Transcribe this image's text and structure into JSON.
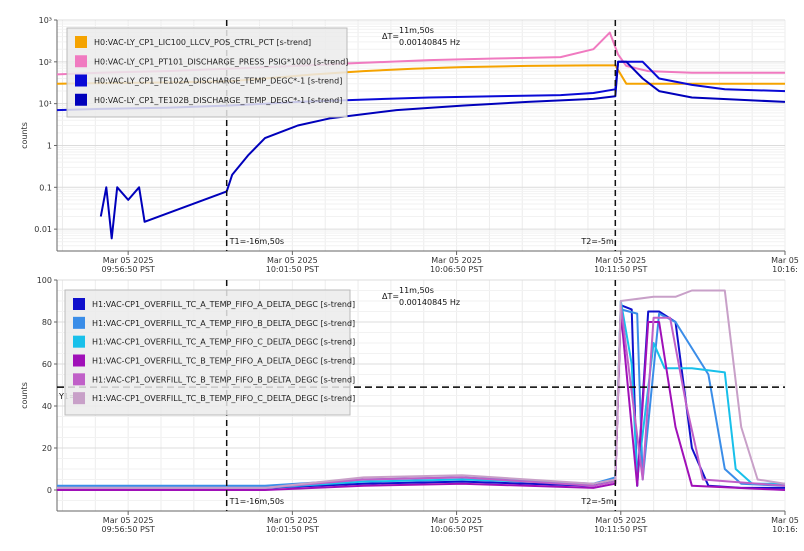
{
  "chart_data": [
    {
      "type": "line",
      "ylabel": "counts",
      "yscale": "log",
      "ylim": [
        0.003,
        1000
      ],
      "xlim": [
        "09:54:40",
        "10:16:50"
      ],
      "grid": true,
      "legend_position": "top-left",
      "yticks": [
        {
          "value": 0.01,
          "label": "0.01"
        },
        {
          "value": 0.1,
          "label": "0.1"
        },
        {
          "value": 1,
          "label": "1"
        },
        {
          "value": 10,
          "label": "10¹"
        },
        {
          "value": 100,
          "label": "10²"
        },
        {
          "value": 1000,
          "label": "10³"
        }
      ],
      "xticks": [
        {
          "value": "09:56:50",
          "date": "Mar 05 2025",
          "time": "09:56:50 PST"
        },
        {
          "value": "10:01:50",
          "date": "Mar 05 2025",
          "time": "10:01:50 PST"
        },
        {
          "value": "10:06:50",
          "date": "Mar 05 2025",
          "time": "10:06:50 PST"
        },
        {
          "value": "10:11:50",
          "date": "Mar 05 2025",
          "time": "10:11:50 PST"
        },
        {
          "value": "10:16:50",
          "date": "Mar 05",
          "time": "10:16:"
        }
      ],
      "cursors": [
        {
          "x": "09:59:50",
          "label": "T1=-16m,50s"
        },
        {
          "x": "10:11:40",
          "label": "T2=-5m"
        }
      ],
      "delta": {
        "label": "ΔT=",
        "value": "11m,50s",
        "freq": "0.00140845 Hz"
      },
      "series": [
        {
          "name": "H0:VAC-LY_CP1_LIC100_LLCV_POS_CTRL_PCT [s-trend]",
          "color": "#f5a300",
          "x": [
            "09:54:40",
            "09:56:00",
            "09:58:00",
            "09:59:50",
            "10:01:00",
            "10:02:30",
            "10:04:00",
            "10:05:30",
            "10:07:00",
            "10:09:00",
            "10:11:00",
            "10:11:40",
            "10:12:00",
            "10:14:00",
            "10:16:50"
          ],
          "y": [
            30,
            31,
            32,
            34,
            40,
            50,
            60,
            68,
            75,
            80,
            82,
            82,
            30,
            30,
            30
          ]
        },
        {
          "name": "H0:VAC-LY_CP1_PT101_DISCHARGE_PRESS_PSIG*1000 [s-trend]",
          "color": "#f07ac0",
          "x": [
            "09:54:40",
            "09:56:00",
            "09:58:00",
            "09:59:50",
            "10:02:00",
            "10:04:00",
            "10:06:00",
            "10:08:00",
            "10:10:00",
            "10:11:00",
            "10:11:30",
            "10:11:45",
            "10:12:00",
            "10:12:40",
            "10:14:00",
            "10:16:50"
          ],
          "y": [
            50,
            55,
            60,
            68,
            80,
            95,
            110,
            120,
            130,
            200,
            500,
            150,
            80,
            60,
            55,
            55
          ]
        },
        {
          "name": "H0:VAC-LY_CP1_TE102A_DISCHARGE_TEMP_DEGC*-1 [s-trend]",
          "color": "#0a0ad6",
          "x": [
            "09:54:40",
            "09:56:00",
            "09:58:00",
            "09:59:50",
            "10:01:00",
            "10:02:00",
            "10:04:00",
            "10:06:00",
            "10:08:00",
            "10:10:00",
            "10:11:00",
            "10:11:40",
            "10:11:45",
            "10:12:30",
            "10:13:00",
            "10:14:00",
            "10:15:00",
            "10:16:50"
          ],
          "y": [
            7,
            7.5,
            8,
            9,
            10,
            11,
            12.5,
            14,
            15,
            16,
            18,
            22,
            100,
            100,
            40,
            28,
            22,
            20
          ]
        },
        {
          "name": "H0:VAC-LY_CP1_TE102B_DISCHARGE_TEMP_DEGC*-1 [s-trend]",
          "color": "#0000bb",
          "x": [
            "09:56:00",
            "09:56:10",
            "09:56:20",
            "09:56:30",
            "09:56:50",
            "09:57:10",
            "09:57:20",
            "09:59:50",
            "10:00:00",
            "10:00:30",
            "10:01:00",
            "10:02:00",
            "10:03:00",
            "10:05:00",
            "10:07:00",
            "10:09:00",
            "10:11:00",
            "10:11:40",
            "10:11:45",
            "10:12:00",
            "10:12:30",
            "10:13:00",
            "10:14:00",
            "10:16:50"
          ],
          "y": [
            0.02,
            0.1,
            0.006,
            0.1,
            0.05,
            0.1,
            0.015,
            0.08,
            0.2,
            0.6,
            1.5,
            3,
            4.5,
            7,
            9,
            11,
            13,
            15,
            100,
            100,
            40,
            20,
            14,
            11
          ]
        }
      ]
    },
    {
      "type": "line",
      "ylabel": "counts",
      "ylim": [
        -10,
        100
      ],
      "xlim": [
        "09:54:40",
        "10:16:50"
      ],
      "grid": true,
      "legend_position": "top-left",
      "yticks": [
        {
          "value": 0,
          "label": "0"
        },
        {
          "value": 20,
          "label": "20"
        },
        {
          "value": 40,
          "label": "40"
        },
        {
          "value": 60,
          "label": "60"
        },
        {
          "value": 80,
          "label": "80"
        },
        {
          "value": 100,
          "label": "100"
        }
      ],
      "xticks": [
        {
          "value": "09:56:50",
          "date": "Mar 05 2025",
          "time": "09:56:50 PST"
        },
        {
          "value": "10:01:50",
          "date": "Mar 05 2025",
          "time": "10:01:50 PST"
        },
        {
          "value": "10:06:50",
          "date": "Mar 05 2025",
          "time": "10:06:50 PST"
        },
        {
          "value": "10:11:50",
          "date": "Mar 05 2025",
          "time": "10:11:50 PST"
        },
        {
          "value": "10:16:50",
          "date": "Mar 05",
          "time": "10:16:"
        }
      ],
      "cursors": [
        {
          "x": "09:59:50",
          "label": "T1=-16m,50s"
        },
        {
          "x": "10:11:40",
          "label": "T2=-5m"
        }
      ],
      "hline": {
        "y": 49,
        "label": "Y1="
      },
      "delta": {
        "label": "ΔT=",
        "value": "11m,50s",
        "freq": "0.00140845 Hz"
      },
      "series": [
        {
          "name": "H1:VAC-CP1_OVERFILL_TC_A_TEMP_FIFO_A_DELTA_DEGC [s-trend]",
          "color": "#1010cc",
          "x": [
            "09:54:40",
            "10:01:00",
            "10:04:00",
            "10:07:00",
            "10:11:00",
            "10:11:40",
            "10:11:50",
            "10:12:10",
            "10:12:20",
            "10:12:40",
            "10:13:00",
            "10:13:30",
            "10:14:00",
            "10:14:30",
            "10:15:30",
            "10:16:50"
          ],
          "y": [
            1,
            1,
            3,
            4,
            2,
            5,
            88,
            86,
            2,
            85,
            85,
            80,
            20,
            2,
            1,
            1
          ]
        },
        {
          "name": "H1:VAC-CP1_OVERFILL_TC_A_TEMP_FIFO_B_DELTA_DEGC [s-trend]",
          "color": "#3a8de8",
          "x": [
            "09:54:40",
            "10:01:00",
            "10:04:00",
            "10:07:00",
            "10:11:00",
            "10:11:40",
            "10:11:50",
            "10:12:20",
            "10:12:30",
            "10:13:00",
            "10:13:30",
            "10:14:30",
            "10:15:00",
            "10:15:30",
            "10:16:50"
          ],
          "y": [
            2,
            2,
            5,
            6,
            3,
            6,
            86,
            84,
            5,
            84,
            80,
            55,
            10,
            3,
            2
          ]
        },
        {
          "name": "H1:VAC-CP1_OVERFILL_TC_A_TEMP_FIFO_C_DELTA_DEGC [s-trend]",
          "color": "#18c0ea",
          "x": [
            "09:54:40",
            "10:01:00",
            "10:04:00",
            "10:07:00",
            "10:11:00",
            "10:11:40",
            "10:11:50",
            "10:12:10",
            "10:12:20",
            "10:12:50",
            "10:13:10",
            "10:14:00",
            "10:15:00",
            "10:15:20",
            "10:15:50",
            "10:16:50"
          ],
          "y": [
            1,
            1,
            4,
            5,
            3,
            5,
            90,
            60,
            5,
            70,
            58,
            58,
            56,
            10,
            3,
            3
          ]
        },
        {
          "name": "H1:VAC-CP1_OVERFILL_TC_B_TEMP_FIFO_A_DELTA_DEGC [s-trend]",
          "color": "#a010b8",
          "x": [
            "09:54:40",
            "10:01:00",
            "10:04:00",
            "10:07:00",
            "10:11:00",
            "10:11:40",
            "10:11:50",
            "10:12:20",
            "10:12:40",
            "10:13:00",
            "10:13:30",
            "10:14:00",
            "10:16:50"
          ],
          "y": [
            0,
            0,
            2,
            3,
            1,
            3,
            85,
            2,
            80,
            80,
            30,
            2,
            0
          ]
        },
        {
          "name": "H1:VAC-CP1_OVERFILL_TC_B_TEMP_FIFO_B_DELTA_DEGC [s-trend]",
          "color": "#c060c8",
          "x": [
            "09:54:40",
            "10:01:00",
            "10:04:00",
            "10:07:00",
            "10:11:00",
            "10:11:40",
            "10:11:50",
            "10:12:30",
            "10:12:50",
            "10:13:20",
            "10:13:50",
            "10:14:20",
            "10:16:50"
          ],
          "y": [
            1,
            1,
            5,
            6,
            2,
            4,
            88,
            5,
            82,
            82,
            40,
            5,
            2
          ]
        },
        {
          "name": "H1:VAC-CP1_OVERFILL_TC_B_TEMP_FIFO_C_DELTA_DEGC [s-trend]",
          "color": "#c8a0c8",
          "x": [
            "09:54:40",
            "10:01:00",
            "10:04:00",
            "10:07:00",
            "10:11:00",
            "10:11:40",
            "10:11:50",
            "10:12:50",
            "10:13:30",
            "10:14:00",
            "10:15:00",
            "10:15:30",
            "10:16:00",
            "10:16:50"
          ],
          "y": [
            1,
            1,
            6,
            7,
            3,
            5,
            90,
            92,
            92,
            95,
            95,
            30,
            5,
            3
          ]
        }
      ]
    }
  ]
}
